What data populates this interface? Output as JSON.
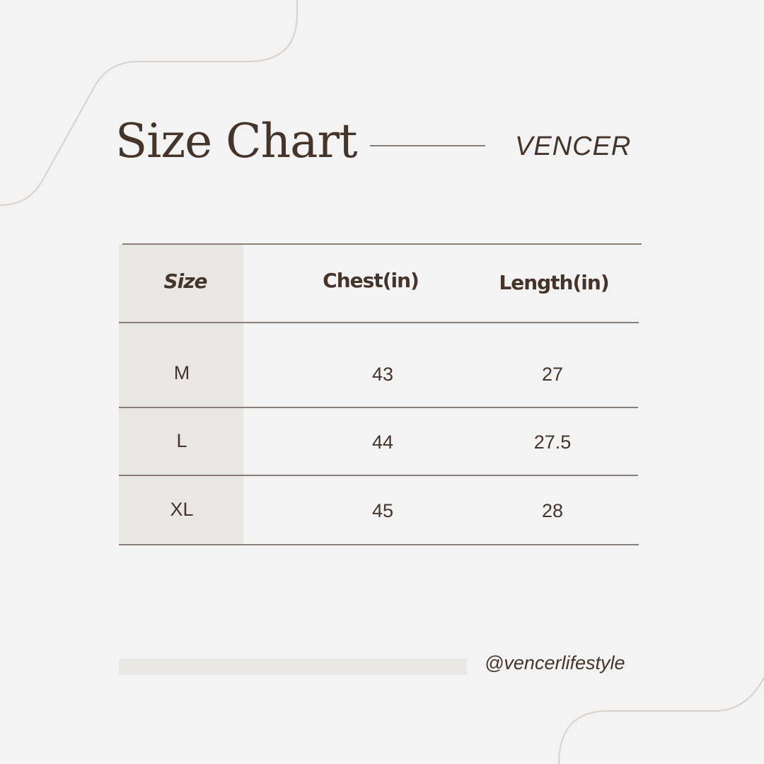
{
  "header": {
    "title": "Size Chart",
    "brand": "VENCER"
  },
  "table": {
    "columns": [
      "Size",
      "Chest(in)",
      "Length(in)"
    ],
    "rows": [
      [
        "M",
        "43",
        "27"
      ],
      [
        "L",
        "44",
        "27.5"
      ],
      [
        "XL",
        "45",
        "28"
      ]
    ]
  },
  "footer": {
    "handle": "@vencerlifestyle"
  },
  "colors": {
    "background": "#f3f3f3",
    "text": "#45342a",
    "accent_column": "#e8e7e4",
    "rule": "#8a7f78"
  }
}
